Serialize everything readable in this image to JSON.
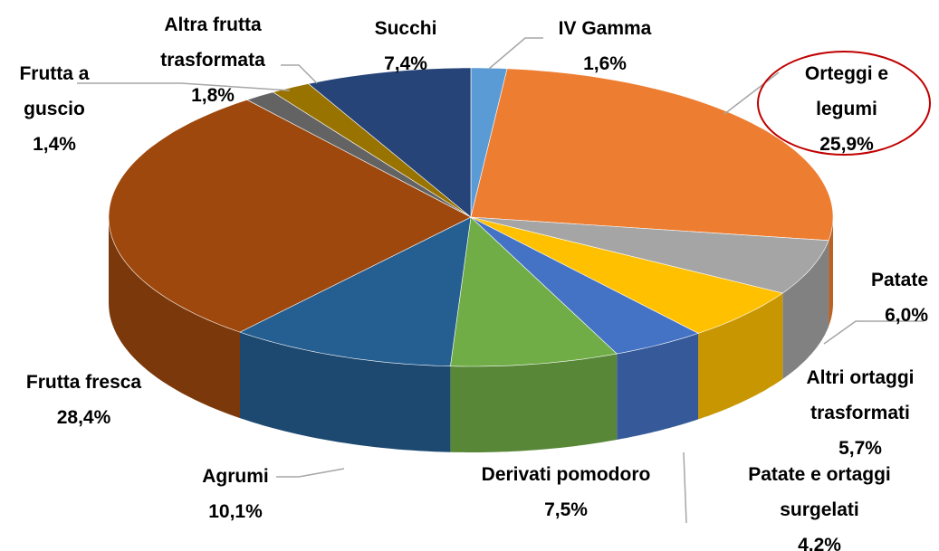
{
  "chart_data": {
    "type": "pie",
    "categories": [
      "IV Gamma",
      "Orteggi e legumi",
      "Patate",
      "Altri ortaggi trasformati",
      "Patate e ortaggi surgelati",
      "Derivati pomodoro",
      "Agrumi",
      "Frutta fresca",
      "Frutta a guscio",
      "Altra frutta trasformata",
      "Succhi"
    ],
    "values": [
      1.6,
      25.9,
      6.0,
      5.7,
      4.2,
      7.5,
      10.1,
      28.4,
      1.4,
      1.8,
      7.4
    ],
    "value_labels": [
      "1,6%",
      "25,9%",
      "6,0%",
      "5,7%",
      "4,2%",
      "7,5%",
      "10,1%",
      "28,4%",
      "1,4%",
      "1,8%",
      "7,4%"
    ],
    "colors": [
      "#5b9bd5",
      "#ed7d31",
      "#a5a5a5",
      "#ffc000",
      "#4472c4",
      "#70ad47",
      "#255e91",
      "#9e480e",
      "#636363",
      "#997300",
      "#264478"
    ]
  }
}
